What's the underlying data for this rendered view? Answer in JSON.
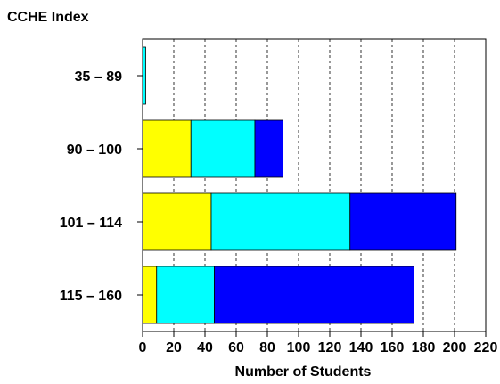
{
  "chart_data": {
    "type": "bar",
    "orientation": "horizontal",
    "stacked": true,
    "title": "CCHE Index",
    "xlabel": "Number of Students",
    "ylabel": "",
    "categories": [
      "35 – 89",
      "90 – 100",
      "101 – 114",
      "115 – 160"
    ],
    "series": [
      {
        "color": "#ffff00",
        "values": [
          0,
          31,
          44,
          9
        ]
      },
      {
        "color": "#00ffff",
        "values": [
          2,
          41,
          89,
          37
        ]
      },
      {
        "color": "#0000ff",
        "values": [
          0,
          18,
          68,
          128
        ]
      }
    ],
    "xlim": [
      0,
      220
    ],
    "xticks": [
      0,
      20,
      40,
      60,
      80,
      100,
      120,
      140,
      160,
      180,
      200,
      220
    ],
    "xtick_labels": [
      "0",
      "20",
      "40",
      "60",
      "80",
      "100",
      "120",
      "140",
      "160",
      "180",
      "200",
      "220"
    ],
    "grid": "vertical dashed"
  }
}
